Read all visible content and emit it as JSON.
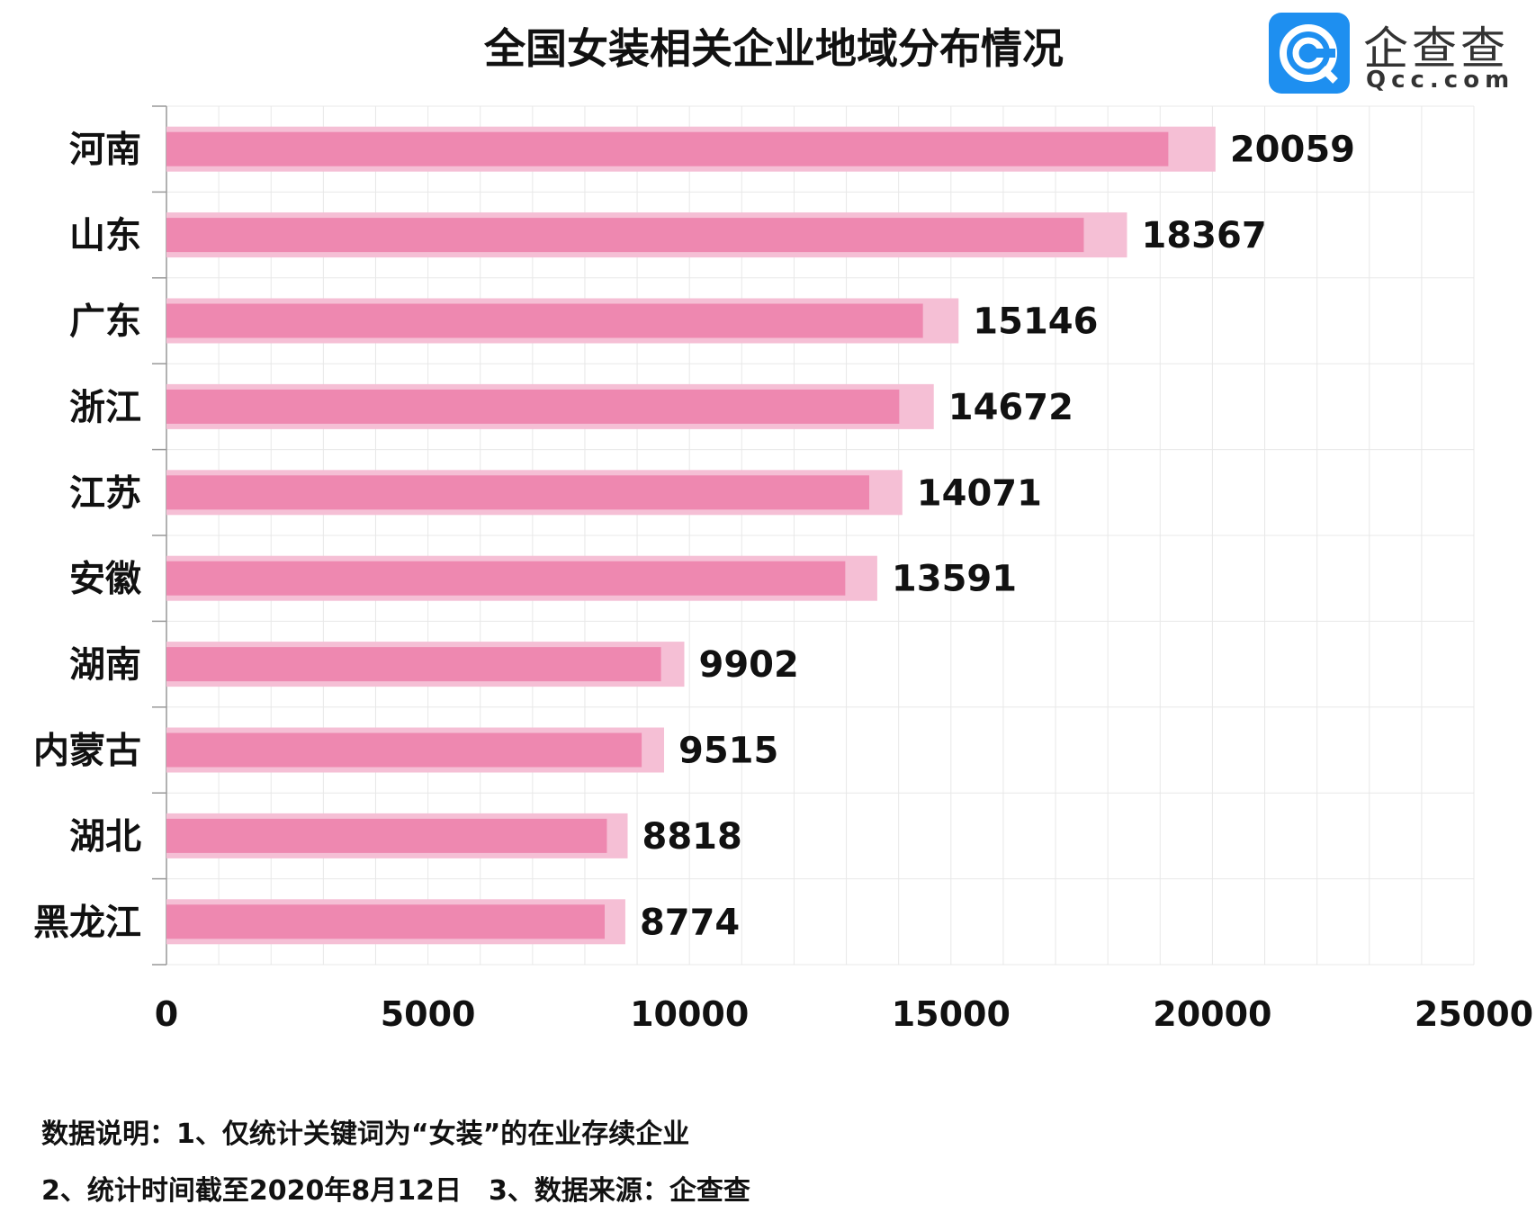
{
  "logo": {
    "cn": "企查查",
    "en": "Qcc.com"
  },
  "notes": [
    "数据说明：1、仅统计关键词为“女装”的在业存续企业",
    "2、统计时间截至2020年8月12日　3、数据来源：企查查"
  ],
  "colors": {
    "bar": "#ee88b0",
    "bar_halo": "#f5bfd5",
    "grid": "#e8e8e8",
    "axis": "#999999",
    "logo": "#1e8ff0"
  },
  "chart_data": {
    "type": "bar",
    "orientation": "horizontal",
    "title": "全国女装相关企业地域分布情况",
    "categories": [
      "河南",
      "山东",
      "广东",
      "浙江",
      "江苏",
      "安徽",
      "湖南",
      "内蒙古",
      "湖北",
      "黑龙江"
    ],
    "values": [
      20059,
      18367,
      15146,
      14672,
      14071,
      13591,
      9902,
      9515,
      8818,
      8774
    ],
    "xlim": [
      0,
      25000
    ],
    "xticks": [
      0,
      5000,
      10000,
      15000,
      20000,
      25000
    ],
    "grid": true,
    "data_labels": true
  }
}
